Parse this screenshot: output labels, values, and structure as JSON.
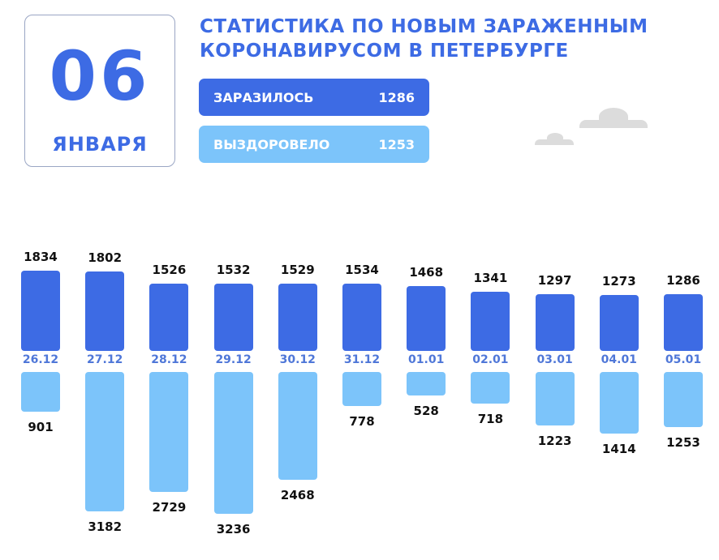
{
  "date": {
    "day": "06",
    "month": "ЯНВАРЯ"
  },
  "title": {
    "line1": "СТАТИСТИКА ПО НОВЫМ ЗАРАЖЕННЫМ",
    "line2": "КОРОНАВИРУСОМ В ПЕТЕРБУРГЕ"
  },
  "summary": {
    "infected": {
      "label": "ЗАРАЗИЛОСЬ",
      "value": "1286",
      "color": "#3d6be4"
    },
    "recovered": {
      "label": "ВЫЗДОРОВЕЛО",
      "value": "1253",
      "color": "#7cc4fa"
    }
  },
  "chart_data": {
    "type": "bar",
    "title": "Статистика по новым зараженным коронавирусом в Петербурге",
    "categories": [
      "26.12",
      "27.12",
      "28.12",
      "29.12",
      "30.12",
      "31.12",
      "01.01",
      "02.01",
      "03.01",
      "04.01",
      "05.01"
    ],
    "series": [
      {
        "name": "Заразилось",
        "color": "#3d6be4",
        "direction": "up",
        "values": [
          1834,
          1802,
          1526,
          1532,
          1529,
          1534,
          1468,
          1341,
          1297,
          1273,
          1286
        ]
      },
      {
        "name": "Выздоровело",
        "color": "#7cc4fa",
        "direction": "down",
        "values": [
          901,
          3182,
          2729,
          3236,
          2468,
          778,
          528,
          718,
          1223,
          1414,
          1253
        ]
      }
    ],
    "xlabel": "",
    "ylabel": "",
    "grid": false,
    "legend_position": "top"
  }
}
